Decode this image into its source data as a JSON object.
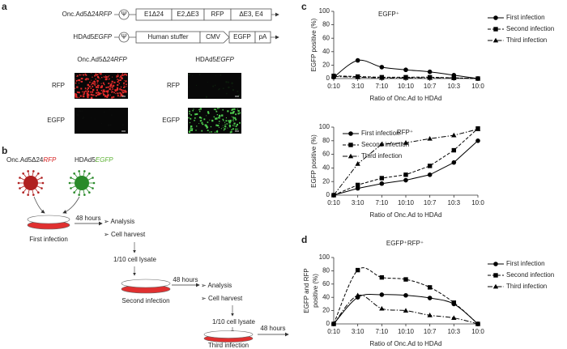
{
  "panels": {
    "a": {
      "label": "a",
      "constructs": [
        {
          "name": {
            "prefix": "Onc.Ad5Δ24",
            "suffix": "RFP"
          },
          "elements": [
            "Ψ",
            "E1Δ24",
            "E2,ΔE3",
            "RFP",
            "ΔE3, E4"
          ]
        },
        {
          "name": {
            "prefix": "HDAd5",
            "suffix": "EGFP"
          },
          "elements": [
            "Ψ",
            "Human stuffer",
            "CMV",
            "EGFP",
            "pA"
          ]
        }
      ],
      "image_columns": [
        {
          "prefix": "Onc.Ad5Δ24",
          "suffix": "RFP"
        },
        {
          "prefix": "HDAd5",
          "suffix": "EGFP"
        }
      ],
      "image_rows": [
        "RFP",
        "EGFP"
      ]
    },
    "b": {
      "label": "b",
      "viruses": [
        {
          "prefix": "Onc.Ad5Δ24",
          "suffix": "RFP"
        },
        {
          "prefix": "HDAd5",
          "suffix": "EGFP"
        }
      ],
      "steps": [
        "First infection",
        "Second infection",
        "Third infection"
      ],
      "duration": "48 hours",
      "bullet": "➢",
      "actions": [
        "Analysis",
        "Cell harvest"
      ],
      "transfer": "1/10 cell lysate"
    },
    "c": {
      "label": "c"
    },
    "d": {
      "label": "d"
    }
  },
  "chart_data": [
    {
      "type": "line",
      "title": "EGFP⁺",
      "x_label": "Ratio of Onc.Ad to HDAd",
      "y_label": [
        "EGFP positive (%)"
      ],
      "categories": [
        "0:10",
        "3:10",
        "7:10",
        "10:10",
        "10:7",
        "10:3",
        "10:0"
      ],
      "ylim": [
        0,
        100
      ],
      "yticks": [
        0,
        20,
        40,
        60,
        80,
        100
      ],
      "grid": false,
      "smooth": true,
      "legend": "upper right",
      "series": [
        {
          "name": "First infection",
          "color": "#000000",
          "marker": "circle",
          "line_style": "solid",
          "values": [
            2,
            27,
            17,
            13,
            10,
            5,
            0
          ]
        },
        {
          "name": "Second infection",
          "color": "#000000",
          "marker": "square",
          "line_style": "dashed",
          "values": [
            4,
            3,
            2,
            2,
            2,
            1,
            0
          ]
        },
        {
          "name": "Third infection",
          "color": "#000000",
          "marker": "triangle",
          "line_style": "dashdot",
          "values": [
            3,
            2,
            1,
            1,
            1,
            1,
            0
          ]
        }
      ]
    },
    {
      "type": "line",
      "title": "RFP⁺",
      "x_label": "Ratio of Onc.Ad to HDAd",
      "y_label": [
        "EGFP positive (%)"
      ],
      "categories": [
        "0:10",
        "3:10",
        "7:10",
        "10:10",
        "10:7",
        "10:3",
        "10:0"
      ],
      "ylim": [
        0,
        100
      ],
      "yticks": [
        0,
        20,
        40,
        60,
        80,
        100
      ],
      "grid": false,
      "smooth": false,
      "legend": "upper left",
      "series": [
        {
          "name": "First infection",
          "color": "#000000",
          "marker": "circle",
          "line_style": "solid",
          "values": [
            0,
            10,
            17,
            22,
            30,
            48,
            80
          ]
        },
        {
          "name": "Second infection",
          "color": "#000000",
          "marker": "square",
          "line_style": "dashed",
          "values": [
            0,
            15,
            25,
            30,
            43,
            66,
            98
          ]
        },
        {
          "name": "Third infection",
          "color": "#000000",
          "marker": "triangle",
          "line_style": "dashdot",
          "values": [
            0,
            46,
            75,
            77,
            83,
            88,
            97
          ]
        }
      ]
    },
    {
      "type": "line",
      "title": "EGFP⁺RFP⁺",
      "x_label": "Ratio of Onc.Ad to HDAd",
      "y_label": [
        "EGFP and RFP",
        "positive (%)"
      ],
      "categories": [
        "0:10",
        "3:10",
        "7:10",
        "10:10",
        "10:7",
        "10:3",
        "10:0"
      ],
      "ylim": [
        0,
        100
      ],
      "yticks": [
        0,
        20,
        40,
        60,
        80,
        100
      ],
      "grid": false,
      "smooth": true,
      "legend": "upper right",
      "series": [
        {
          "name": "First infection",
          "color": "#000000",
          "marker": "circle",
          "line_style": "solid",
          "values": [
            0,
            40,
            44,
            43,
            39,
            30,
            0
          ]
        },
        {
          "name": "Second infection",
          "color": "#000000",
          "marker": "square",
          "line_style": "dashed",
          "values": [
            0,
            81,
            70,
            67,
            55,
            32,
            0
          ]
        },
        {
          "name": "Third infection",
          "color": "#000000",
          "marker": "triangle",
          "line_style": "dashdot",
          "values": [
            0,
            43,
            23,
            20,
            13,
            9,
            0
          ]
        }
      ]
    }
  ]
}
